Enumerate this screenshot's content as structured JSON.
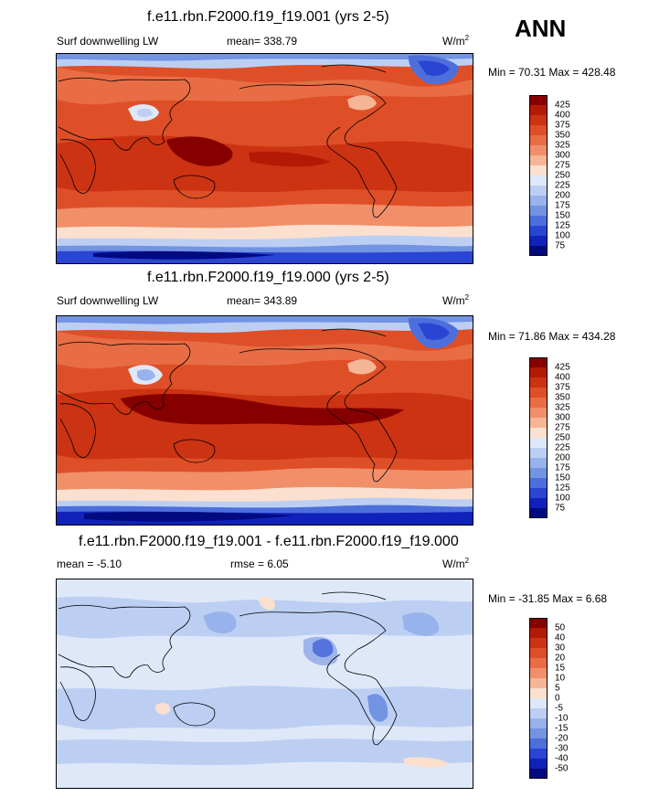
{
  "season": "ANN",
  "units_base": "W/m",
  "units_exp": "2",
  "panels": [
    {
      "title": "f.e11.rbn.F2000.f19_f19.001 (yrs 2-5)",
      "left_label": "Surf downwelling LW",
      "center_label": "mean= 338.79",
      "minmax": "Min =  70.31 Max = 428.48",
      "type": "abs"
    },
    {
      "title": "f.e11.rbn.F2000.f19_f19.000 (yrs 2-5)",
      "left_label": "Surf downwelling LW",
      "center_label": "mean= 343.89",
      "minmax": "Min =  71.86 Max = 434.28",
      "type": "abs"
    },
    {
      "title": "f.e11.rbn.F2000.f19_f19.001 - f.e11.rbn.F2000.f19_f19.000",
      "left_label": "mean =  -5.10",
      "center_label": "rmse =   6.05",
      "minmax": "Min = -31.85 Max =   6.68",
      "type": "diff"
    }
  ],
  "colorbars": {
    "abs": {
      "labels": [
        "425",
        "400",
        "375",
        "350",
        "325",
        "300",
        "275",
        "250",
        "225",
        "200",
        "175",
        "150",
        "125",
        "100",
        "75"
      ],
      "colors": [
        "#870000",
        "#b31a05",
        "#cc3312",
        "#de4f28",
        "#e86d45",
        "#f08f6a",
        "#f6b597",
        "#fbe0cf",
        "#dfe8f8",
        "#bccff3",
        "#98b2ec",
        "#7393e3",
        "#4d6fdc",
        "#2a45d2",
        "#1022b9",
        "#020a80"
      ]
    },
    "diff": {
      "labels": [
        "50",
        "40",
        "30",
        "20",
        "15",
        "10",
        "5",
        "0",
        "-5",
        "-10",
        "-15",
        "-20",
        "-30",
        "-40",
        "-50"
      ],
      "colors": [
        "#870000",
        "#b31a05",
        "#cc3312",
        "#de4f28",
        "#e86d45",
        "#f08f6a",
        "#f6b597",
        "#fbe0cf",
        "#dfe8f8",
        "#bccff3",
        "#98b2ec",
        "#7393e3",
        "#4d6fdc",
        "#2a45d2",
        "#1022b9",
        "#020a80"
      ]
    }
  }
}
